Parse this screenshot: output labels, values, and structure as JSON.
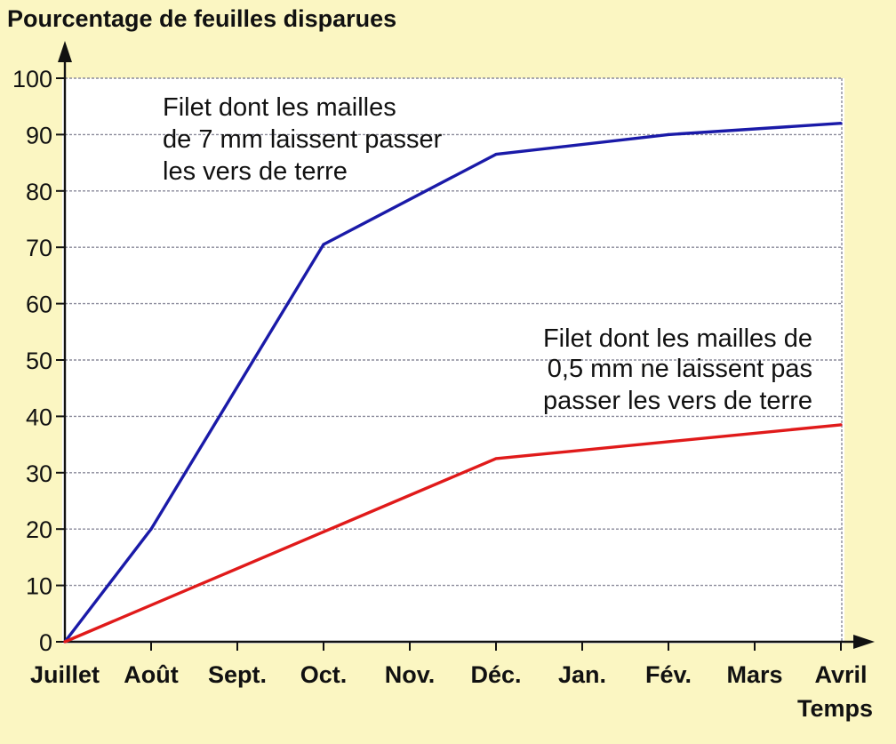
{
  "chart_data": {
    "type": "line",
    "title": "Pourcentage de feuilles disparues",
    "xlabel": "Temps",
    "ylabel": "Pourcentage de feuilles disparues",
    "ylim": [
      0,
      100
    ],
    "y_ticks": [
      0,
      10,
      20,
      30,
      40,
      50,
      60,
      70,
      80,
      90,
      100
    ],
    "categories": [
      "Juillet",
      "Août",
      "Sept.",
      "Oct.",
      "Nov.",
      "Déc.",
      "Jan.",
      "Fév.",
      "Mars",
      "Avril"
    ],
    "grid": true,
    "series": [
      {
        "name": "Filet dont les mailles de 7 mm laissent passer les vers de terre",
        "label_lines": [
          "Filet dont les mailles",
          "de 7 mm laissent passer",
          "les vers de terre"
        ],
        "color": "#1a1aa8",
        "x": [
          "Juillet",
          "Août",
          "Oct.",
          "Déc.",
          "Fév.",
          "Avril"
        ],
        "values": [
          0,
          20,
          70.5,
          86.5,
          90,
          92
        ]
      },
      {
        "name": "Filet dont les mailles de 0,5 mm ne laissent pas passer les vers de terre",
        "label_lines": [
          "Filet dont les mailles de",
          "0,5 mm ne laissent pas",
          "passer les vers de terre"
        ],
        "color": "#e01a1a",
        "x": [
          "Juillet",
          "Oct.",
          "Déc.",
          "Avril"
        ],
        "values": [
          0,
          19.5,
          32.5,
          38.5
        ]
      }
    ]
  }
}
